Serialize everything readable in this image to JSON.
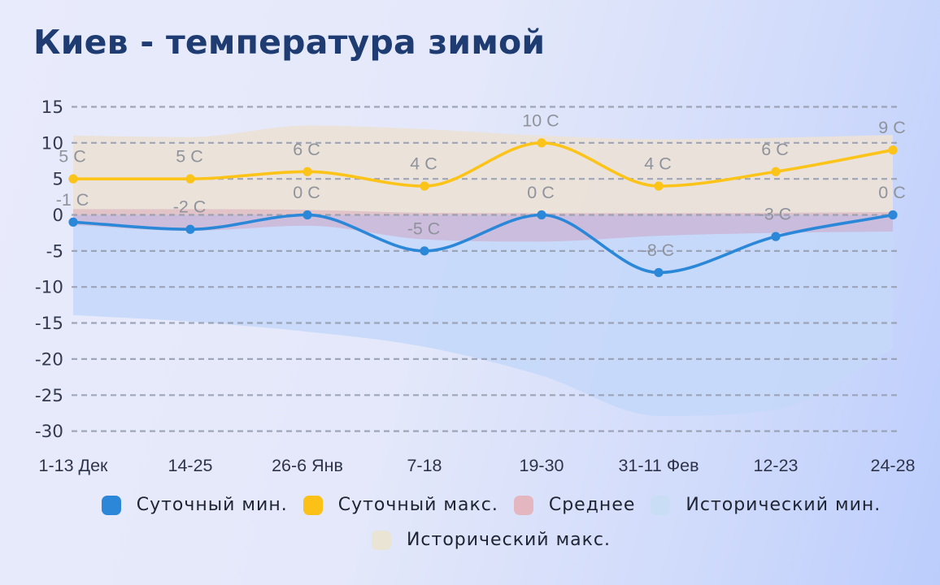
{
  "title": "Киев - температура зимой",
  "colors": {
    "background_start": "#e8ebfb",
    "background_end": "#bccdfc",
    "title": "#1e3c72",
    "grid_line": "#949bad",
    "axis_tick_label": "#363a50",
    "category_label": "#30344a",
    "data_label": "#8f939c",
    "daily_min_line": "#2b87d8",
    "daily_max_line": "#fcc319",
    "average_fill": "rgba(208,132,163,0.33)",
    "hist_min_fill": "rgba(197,216,250,0.9)",
    "hist_max_fill": "rgba(236,226,215,0.92)",
    "legend_text": "#1f2433"
  },
  "chart_data": {
    "type": "line",
    "title": "Киев - температура зимой",
    "categories": [
      "1-13 Дек",
      "14-25",
      "26-6 Янв",
      "7-18",
      "19-30",
      "31-11 Фев",
      "12-23",
      "24-28"
    ],
    "y_ticks": [
      15,
      10,
      5,
      0,
      -5,
      -10,
      -15,
      -20,
      -25,
      -30
    ],
    "ylim": [
      -30,
      15
    ],
    "grid": "dashed",
    "legend_position": "bottom",
    "unit": "C",
    "series": [
      {
        "name": "Исторический макс.",
        "type": "band",
        "color_key": "hist_max_fill",
        "top": [
          11.0,
          10.8,
          12.4,
          11.9,
          11.0,
          10.5,
          10.7,
          11.1
        ],
        "bottom": [
          0,
          0,
          0,
          0,
          0,
          0,
          0,
          0
        ]
      },
      {
        "name": "Исторический мин.",
        "type": "band",
        "color_key": "hist_min_fill",
        "top": [
          0,
          0,
          0,
          0,
          0,
          0,
          0,
          0
        ],
        "bottom": [
          -13.9,
          -14.8,
          -16.2,
          -18.3,
          -22.3,
          -27.9,
          -27.0,
          -18.6
        ]
      },
      {
        "name": "Среднее",
        "type": "band",
        "color_key": "average_fill",
        "top": [
          0.8,
          0.8,
          0.7,
          0.3,
          0.25,
          0.25,
          0.3,
          0.4
        ],
        "bottom": [
          -1.4,
          -2.2,
          -1.5,
          -3.4,
          -3.7,
          -2.9,
          -2.5,
          -2.3
        ]
      },
      {
        "name": "Суточный макс.",
        "type": "line",
        "color_key": "daily_max_line",
        "values": [
          5,
          5,
          6,
          4,
          10,
          4,
          6,
          9
        ],
        "labels": [
          "5 C",
          "5 C",
          "6 C",
          "4 C",
          "10 C",
          "4 C",
          "6 C",
          "9 C"
        ]
      },
      {
        "name": "Суточный мин.",
        "type": "line",
        "color_key": "daily_min_line",
        "values": [
          -1,
          -2,
          0,
          -5,
          0,
          -8,
          -3,
          0
        ],
        "labels": [
          "-1 C",
          "-2 C",
          "0 C",
          "-5 C",
          "0 C",
          "-8 C",
          "-3 C",
          "0 C"
        ]
      }
    ]
  },
  "legend": {
    "rows": [
      [
        {
          "label": "Суточный мин.",
          "swatch": "#2d87d8"
        },
        {
          "label": "Суточный макс.",
          "swatch": "#fbc117"
        },
        {
          "label": "Среднее",
          "swatch": "#e3b6c0"
        },
        {
          "label": "Исторический мин.",
          "swatch": "#c9def5"
        }
      ],
      [
        {
          "label": "Исторический макс.",
          "swatch": "#e9e4d4"
        }
      ]
    ]
  }
}
